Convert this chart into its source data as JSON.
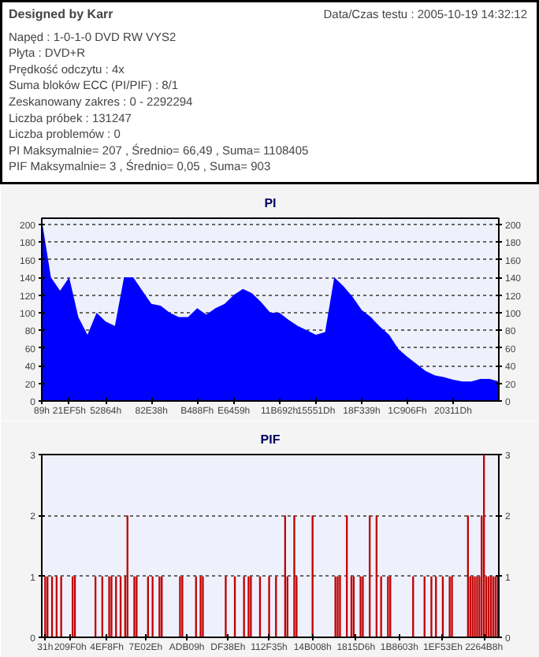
{
  "chart_data": [
    {
      "type": "other",
      "title": "Designed by Karr",
      "annotations": [
        "Data/Czas testu : 2005-10-19 14:32:12",
        "Napęd : 1-0-1-0 DVD RW VYS2",
        "Płyta : DVD+R",
        "Prędkość odczytu : 4x",
        "Suma bloków ECC (PI/PIF) : 8/1",
        "Zeskanowany zakres : 0 - 2292294",
        "Liczba próbek : 131247",
        "Liczba problemów : 0",
        "PI Maksymalnie= 207 , Średnio= 66,49 , Suma= 1108405",
        "PIF Maksymalnie= 3 , Średnio= 0,05 , Suma= 903"
      ]
    },
    {
      "type": "area",
      "title": "PI",
      "ylim": [
        0,
        207
      ],
      "y2lim": [
        0,
        207
      ],
      "grid": "y",
      "categories": [
        "89h",
        null,
        null,
        "21EF5h",
        null,
        null,
        null,
        "52864h",
        null,
        null,
        null,
        null,
        "82E38h",
        null,
        null,
        null,
        null,
        "B488Fh",
        null,
        null,
        null,
        "E6459h",
        null,
        null,
        null,
        null,
        "11B692h",
        null,
        null,
        null,
        "15551Dh",
        null,
        null,
        null,
        null,
        "18F339h",
        null,
        null,
        null,
        null,
        "1C906Fh",
        null,
        null,
        null,
        null,
        "20311Dh",
        null,
        null,
        null,
        null,
        null
      ],
      "yticks": [
        0,
        20,
        40,
        60,
        80,
        100,
        120,
        140,
        160,
        180,
        200
      ],
      "y2ticks": [
        0,
        20,
        40,
        60,
        80,
        100,
        120,
        140,
        160,
        180,
        200
      ],
      "series": [
        {
          "color": "#0000ff",
          "values": [
            205,
            140,
            125,
            140,
            95,
            75,
            100,
            90,
            85,
            140,
            140,
            125,
            110,
            108,
            100,
            95,
            95,
            105,
            98,
            105,
            110,
            120,
            127,
            122,
            112,
            100,
            100,
            92,
            85,
            80,
            75,
            78,
            140,
            130,
            118,
            103,
            95,
            84,
            75,
            59,
            50,
            42,
            34,
            29,
            27,
            24,
            22,
            22,
            25,
            25,
            22
          ]
        }
      ]
    },
    {
      "type": "bar",
      "title": "PIF",
      "ylim": [
        0,
        3
      ],
      "y2lim": [
        0,
        3
      ],
      "grid": "y",
      "categories": [
        null,
        "31h",
        null,
        null,
        null,
        null,
        null,
        null,
        null,
        null,
        null,
        null,
        "209F0h",
        null,
        null,
        null,
        null,
        null,
        null,
        null,
        null,
        null,
        null,
        null,
        null,
        null,
        null,
        null,
        "4EF8Fh",
        null,
        null,
        null,
        null,
        null,
        null,
        null,
        null,
        null,
        null,
        null,
        null,
        null,
        null,
        null,
        null,
        "7E02Eh",
        null,
        null,
        null,
        null,
        null,
        null,
        null,
        null,
        null,
        null,
        null,
        null,
        null,
        null,
        null,
        null,
        null,
        "ADB09h",
        null,
        null,
        null,
        null,
        null,
        null,
        null,
        null,
        null,
        null,
        null,
        null,
        null,
        null,
        null,
        null,
        null,
        "DF38Eh",
        null,
        null,
        null,
        null,
        null,
        null,
        null,
        null,
        null,
        null,
        null,
        null,
        null,
        null,
        null,
        null,
        null,
        "112F35h",
        null,
        null,
        null,
        null,
        null,
        null,
        null,
        null,
        null,
        null,
        null,
        null,
        null,
        null,
        null,
        null,
        null,
        null,
        "14B008h",
        null,
        null,
        null,
        null,
        null,
        null,
        null,
        null,
        null,
        null,
        null,
        null,
        null,
        null,
        null,
        null,
        null,
        null,
        "1815D6h",
        null,
        null,
        null,
        null,
        null,
        null,
        null,
        null,
        null,
        null,
        null,
        null,
        null,
        null,
        null,
        null,
        null,
        null,
        "1B8603h",
        null,
        null,
        null,
        null,
        null,
        null,
        null,
        null,
        null,
        null,
        null,
        null,
        null,
        null,
        null,
        null,
        null,
        null,
        "1EF53Eh",
        null,
        null,
        null,
        null,
        null,
        null,
        null,
        null,
        null,
        null,
        null,
        null,
        null,
        null,
        null,
        null,
        null,
        "2264B8h",
        null,
        null,
        null,
        null,
        null,
        null
      ],
      "yticks": [
        0,
        1,
        2,
        3
      ],
      "y2ticks": [
        0,
        1,
        2,
        3
      ],
      "series": [
        {
          "color": "#c00000",
          "values": [
            null,
            1,
            1,
            null,
            1,
            null,
            1,
            null,
            1,
            null,
            null,
            null,
            null,
            1,
            1,
            null,
            null,
            null,
            null,
            null,
            null,
            null,
            null,
            1,
            null,
            null,
            1,
            null,
            null,
            1,
            1,
            null,
            1,
            null,
            1,
            null,
            1,
            2,
            null,
            null,
            1,
            1,
            null,
            null,
            null,
            null,
            1,
            null,
            1,
            null,
            null,
            1,
            1,
            null,
            null,
            null,
            null,
            null,
            null,
            null,
            1,
            1,
            null,
            null,
            null,
            null,
            null,
            1,
            null,
            1,
            1,
            null,
            null,
            null,
            null,
            null,
            null,
            null,
            null,
            null,
            1,
            null,
            null,
            null,
            1,
            null,
            null,
            null,
            1,
            null,
            1,
            1,
            null,
            null,
            null,
            1,
            null,
            null,
            null,
            1,
            null,
            null,
            1,
            null,
            null,
            null,
            2,
            1,
            null,
            null,
            2,
            1,
            null,
            null,
            null,
            null,
            null,
            null,
            2,
            null,
            null,
            null,
            null,
            null,
            null,
            null,
            null,
            null,
            1,
            1,
            1,
            null,
            null,
            2,
            null,
            1,
            1,
            null,
            null,
            1,
            1,
            null,
            null,
            2,
            null,
            null,
            2,
            null,
            1,
            null,
            null,
            1,
            1,
            null,
            null,
            null,
            null,
            null,
            null,
            null,
            null,
            null,
            1,
            null,
            null,
            null,
            null,
            1,
            null,
            null,
            1,
            null,
            1,
            null,
            null,
            1,
            null,
            null,
            1,
            1,
            null,
            null,
            null,
            null,
            null,
            null,
            2,
            1,
            1,
            1,
            1,
            1,
            2,
            3,
            1,
            1,
            1,
            1,
            1,
            1
          ]
        }
      ]
    }
  ]
}
